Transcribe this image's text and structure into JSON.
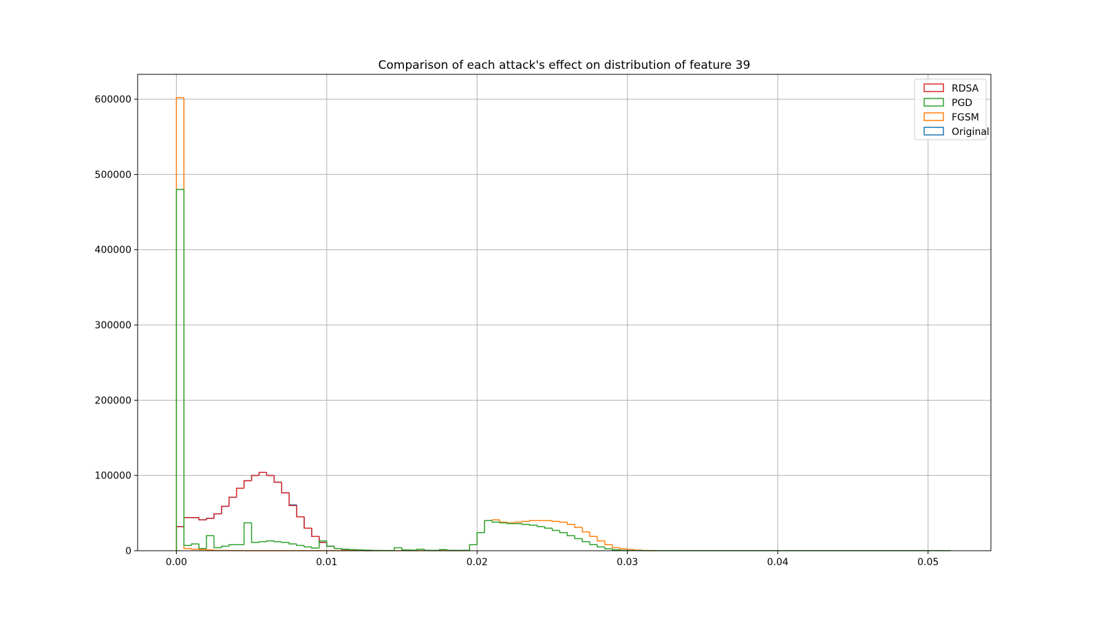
{
  "chart_data": {
    "type": "histogram",
    "title": "Comparison of each attack's effect on distribution of feature 39",
    "xlabel": "",
    "ylabel": "",
    "xlim": [
      -0.00258,
      0.05418
    ],
    "ylim": [
      0,
      633000
    ],
    "xticks": [
      0.0,
      0.01,
      0.02,
      0.03,
      0.04,
      0.05
    ],
    "xtick_labels": [
      "0.00",
      "0.01",
      "0.02",
      "0.03",
      "0.04",
      "0.05"
    ],
    "yticks": [
      0,
      100000,
      200000,
      300000,
      400000,
      500000,
      600000
    ],
    "ytick_labels": [
      "0",
      "100000",
      "200000",
      "300000",
      "400000",
      "500000",
      "600000"
    ],
    "grid": true,
    "legend_position": "top-right",
    "legend_entries": [
      "RDSA",
      "PGD",
      "FGSM",
      "Original"
    ],
    "histtype": "step",
    "series": [
      {
        "name": "Original",
        "color": "#1f77b4",
        "bin_edges": [
          0.0,
          0.0005,
          0.001,
          0.0015,
          0.002,
          0.0025,
          0.003,
          0.0035,
          0.004,
          0.0045,
          0.005,
          0.0055,
          0.006,
          0.0065,
          0.007,
          0.0075,
          0.008,
          0.0085,
          0.009,
          0.0095,
          0.01,
          0.0105,
          0.011,
          0.0115,
          0.012,
          0.0125,
          0.013
        ],
        "counts": [
          32000,
          44000,
          44000,
          41000,
          43000,
          49000,
          59000,
          71000,
          83000,
          93000,
          100000,
          104000,
          100000,
          91000,
          77000,
          61000,
          45000,
          30000,
          19000,
          11000,
          6000,
          3000,
          1500,
          800,
          300,
          100
        ]
      },
      {
        "name": "RDSA",
        "color": "#d62728",
        "bin_edges": [
          0.0,
          0.0005,
          0.001,
          0.0015,
          0.002,
          0.0025,
          0.003,
          0.0035,
          0.004,
          0.0045,
          0.005,
          0.0055,
          0.006,
          0.0065,
          0.007,
          0.0075,
          0.008,
          0.0085,
          0.009,
          0.0095,
          0.01,
          0.0105,
          0.011,
          0.0115,
          0.012,
          0.0125,
          0.013
        ],
        "counts": [
          32000,
          44000,
          44000,
          41000,
          43000,
          49000,
          59000,
          71000,
          83000,
          93000,
          100000,
          104000,
          100000,
          91000,
          77000,
          60000,
          45000,
          30000,
          19000,
          11000,
          6000,
          3000,
          1500,
          800,
          300,
          100
        ]
      },
      {
        "name": "FGSM",
        "color": "#ff7f0e",
        "bin_edges": [
          0.0,
          0.0005,
          0.001,
          0.0015,
          0.002,
          0.0025,
          0.003,
          0.0035,
          0.004,
          0.0045,
          0.005,
          0.0055,
          0.006,
          0.0065,
          0.007,
          0.0075,
          0.008,
          0.0085,
          0.009,
          0.0095,
          0.01,
          0.0105,
          0.011,
          0.0115,
          0.012,
          0.0125,
          0.013,
          0.0135,
          0.014,
          0.0145,
          0.015,
          0.0155,
          0.016,
          0.0165,
          0.017,
          0.0175,
          0.018,
          0.0185,
          0.019,
          0.0195,
          0.02,
          0.0205,
          0.021,
          0.0215,
          0.022,
          0.0225,
          0.023,
          0.0235,
          0.024,
          0.0245,
          0.025,
          0.0255,
          0.026,
          0.0265,
          0.027,
          0.0275,
          0.028,
          0.0285,
          0.029,
          0.0295,
          0.03,
          0.0305,
          0.031,
          0.0315,
          0.032
        ],
        "counts": [
          602000,
          3000,
          2000,
          1500,
          1000,
          500,
          300,
          200,
          100,
          100,
          100,
          100,
          100,
          100,
          100,
          100,
          100,
          100,
          100,
          100,
          100,
          100,
          100,
          100,
          100,
          100,
          100,
          100,
          100,
          100,
          100,
          100,
          100,
          100,
          100,
          100,
          100,
          100,
          100,
          8000,
          24000,
          40000,
          41000,
          38000,
          37000,
          38000,
          39000,
          40000,
          40000,
          40000,
          39000,
          38000,
          35000,
          31000,
          25000,
          19000,
          13000,
          8000,
          4000,
          2500,
          1500,
          800,
          300,
          100
        ]
      },
      {
        "name": "PGD",
        "color": "#2ca02c",
        "bin_edges": [
          0.0,
          0.0005,
          0.001,
          0.0015,
          0.002,
          0.0025,
          0.003,
          0.0035,
          0.004,
          0.0045,
          0.005,
          0.0055,
          0.006,
          0.0065,
          0.007,
          0.0075,
          0.008,
          0.0085,
          0.009,
          0.0095,
          0.01,
          0.0105,
          0.011,
          0.0115,
          0.012,
          0.0125,
          0.013,
          0.0135,
          0.014,
          0.0145,
          0.015,
          0.0155,
          0.016,
          0.0165,
          0.017,
          0.0175,
          0.018,
          0.0185,
          0.019,
          0.0195,
          0.02,
          0.0205,
          0.021,
          0.0215,
          0.022,
          0.0225,
          0.023,
          0.0235,
          0.024,
          0.0245,
          0.025,
          0.0255,
          0.026,
          0.0265,
          0.027,
          0.0275,
          0.028,
          0.0285,
          0.029,
          0.0295,
          0.03,
          0.0305,
          0.031,
          0.0315,
          0.032,
          0.0325,
          0.033,
          0.0335,
          0.034,
          0.0345,
          0.035,
          0.0355,
          0.036,
          0.0365,
          0.037,
          0.0375,
          0.038,
          0.0385,
          0.039,
          0.0395,
          0.04,
          0.0405,
          0.041,
          0.0415,
          0.042,
          0.0425,
          0.043,
          0.0435,
          0.044,
          0.0445,
          0.045,
          0.0455,
          0.046,
          0.0465,
          0.047,
          0.0475,
          0.048,
          0.0485,
          0.049,
          0.0495,
          0.05,
          0.0505,
          0.051,
          0.0515
        ],
        "counts": [
          480000,
          7000,
          9000,
          3000,
          20000,
          4000,
          6000,
          8000,
          8000,
          37000,
          11000,
          12000,
          13000,
          12000,
          11000,
          9000,
          7000,
          5000,
          3500,
          13000,
          6000,
          3000,
          2000,
          1500,
          1000,
          700,
          500,
          300,
          300,
          4000,
          1000,
          800,
          2000,
          600,
          500,
          1500,
          600,
          500,
          500,
          8000,
          24000,
          40000,
          38000,
          37000,
          36000,
          36000,
          35000,
          34000,
          32000,
          30000,
          27000,
          24000,
          20000,
          16000,
          12000,
          8000,
          5000,
          2500,
          1200,
          600,
          300,
          200,
          100,
          100,
          100,
          100,
          100,
          100,
          100,
          100,
          100,
          100,
          100,
          100,
          100,
          100,
          100,
          100,
          100,
          100,
          100,
          100,
          100,
          100,
          100,
          100,
          100,
          100,
          100,
          100,
          100,
          100,
          100,
          100,
          100,
          100,
          100,
          100,
          100,
          100,
          100,
          100,
          100
        ]
      }
    ]
  }
}
